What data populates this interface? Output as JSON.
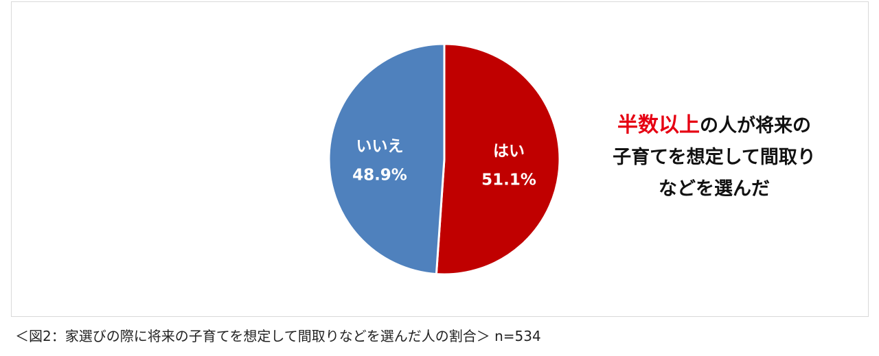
{
  "chart_data": {
    "type": "pie",
    "categories": [
      "はい",
      "いいえ"
    ],
    "values": [
      51.1,
      48.9
    ],
    "value_labels": [
      "51.1%",
      "48.9%"
    ],
    "colors": [
      "#c00000",
      "#4f81bd"
    ],
    "legend": "none"
  },
  "annotation": {
    "highlight": "半数以上",
    "line1_rest": "の人が将来の",
    "line2": "子育てを想定して間取り",
    "line3": "などを選んだ",
    "highlight_color": "#e60012"
  },
  "caption": {
    "text": "＜図2：家選びの際に将来の子育てを想定して間取りなどを選んだ人の割合＞ n=534"
  }
}
